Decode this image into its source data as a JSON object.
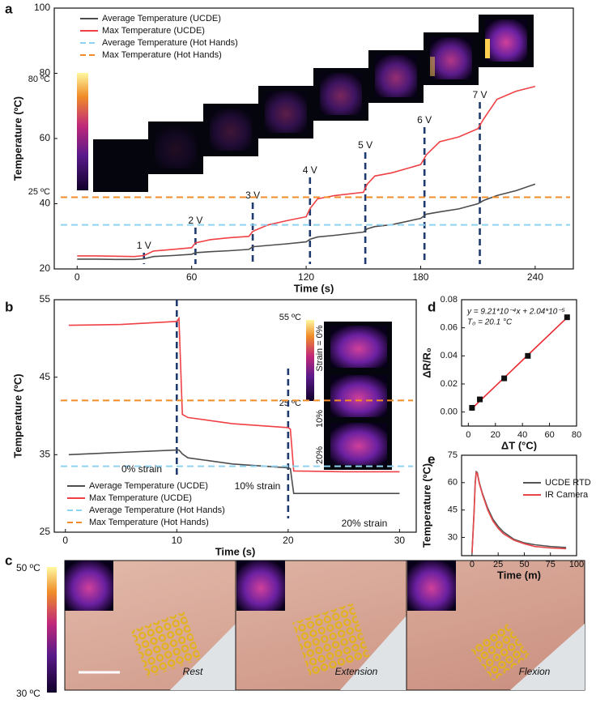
{
  "panel_labels": [
    "a",
    "b",
    "c",
    "d",
    "e"
  ],
  "chart_data": [
    {
      "type": "line",
      "xlabel": "Time (s)",
      "ylabel": "Temperature (ºC)",
      "xlim": [
        -12,
        260
      ],
      "ylim": [
        20,
        100
      ],
      "xticks": [
        0,
        60,
        120,
        180,
        240
      ],
      "yticks": [
        20,
        40,
        60,
        80,
        100
      ],
      "legend": "upper left",
      "x": [
        0,
        10,
        20,
        30,
        35,
        40,
        50,
        60,
        62,
        70,
        80,
        90,
        92,
        100,
        110,
        120,
        122,
        126,
        135,
        150,
        152,
        156,
        165,
        180,
        183,
        190,
        200,
        210,
        213,
        220,
        230,
        240
      ],
      "series": [
        {
          "name": "Average Temperature (UCDE)",
          "color": "#4d4d4d",
          "values": [
            23,
            23,
            22.9,
            22.9,
            23.1,
            23.8,
            24.1,
            24.5,
            25,
            25.3,
            25.6,
            26,
            26.8,
            27.2,
            27.7,
            28.3,
            29.1,
            29.8,
            30.3,
            31.3,
            32.3,
            33,
            33.6,
            35.5,
            36.8,
            37.5,
            38.4,
            40,
            41,
            42.5,
            44,
            46
          ]
        },
        {
          "name": "Max Temperature (UCDE)",
          "color": "#ef4146",
          "values": [
            24,
            24,
            23.9,
            23.8,
            24.1,
            25.5,
            26,
            26.5,
            28,
            29,
            29.6,
            30,
            31.5,
            33.5,
            34.8,
            36,
            38.5,
            41.5,
            42.5,
            43.5,
            46,
            48.5,
            49.5,
            52,
            55,
            59,
            60.5,
            63,
            66,
            72,
            74.5,
            76
          ]
        },
        {
          "name": "Average Temperature (Hot Hands)",
          "color": "#8fd3f0",
          "value": 33.5,
          "dashed": true
        },
        {
          "name": "Max Temperature (Hot Hands)",
          "color": "#f28c28",
          "value": 42,
          "dashed": true
        }
      ],
      "markers": [
        {
          "x": 35,
          "label": "1 V"
        },
        {
          "x": 62,
          "label": "2 V"
        },
        {
          "x": 92,
          "label": "3 V"
        },
        {
          "x": 122,
          "label": "4 V"
        },
        {
          "x": 151,
          "label": "5 V"
        },
        {
          "x": 182,
          "label": "6 V"
        },
        {
          "x": 211,
          "label": "7 V"
        }
      ],
      "colorbar": [
        "80 ºC",
        "25 ºC"
      ]
    },
    {
      "type": "line",
      "xlabel": "Time (s)",
      "ylabel": "Temperature (ºC)",
      "xlim": [
        -1,
        31.5
      ],
      "ylim": [
        25,
        55
      ],
      "xticks": [
        0,
        10,
        20,
        30
      ],
      "yticks": [
        25,
        35,
        45,
        55
      ],
      "legend": "lower left",
      "x": [
        0.3,
        5,
        10,
        10.2,
        10.5,
        11,
        15,
        20,
        20.2,
        20.5,
        25,
        30
      ],
      "series": [
        {
          "name": "Average Temperature (UCDE)",
          "color": "#4d4d4d",
          "values": [
            35,
            35.3,
            35.6,
            35.6,
            35.1,
            34.6,
            33.8,
            33.3,
            33.2,
            30,
            30,
            30
          ]
        },
        {
          "name": "Max Temperature (UCDE)",
          "color": "#ef4146",
          "values": [
            51.7,
            51.8,
            52.2,
            52.6,
            40.2,
            39.8,
            39,
            38.5,
            38.3,
            32.9,
            32.8,
            32.8
          ]
        },
        {
          "name": "Average Temperature (Hot Hands)",
          "color": "#8fd3f0",
          "value": 33.5,
          "dashed": true
        },
        {
          "name": "Max Temperature (Hot Hands)",
          "color": "#f28c28",
          "value": 42,
          "dashed": true
        }
      ],
      "markers": [
        {
          "x": 10
        },
        {
          "x": 20
        }
      ],
      "annotations": [
        "0% strain",
        "10% strain",
        "20% strain"
      ],
      "colorbar": [
        "55 ºC",
        "25 ºC"
      ],
      "inset_labels": [
        "Strain = 0%",
        "10%",
        "20%"
      ]
    },
    {
      "type": "scatter",
      "xlabel": "ΔT (°C)",
      "ylabel": "ΔR/R₀",
      "xlim": [
        -5,
        80
      ],
      "ylim": [
        -0.01,
        0.08
      ],
      "xticks": [
        0,
        20,
        40,
        60,
        80
      ],
      "yticks": [
        {
          "value": 0,
          "label": "0.00"
        },
        0.02,
        0.04,
        0.06,
        0.08
      ],
      "x": [
        2.7,
        8.5,
        26.5,
        44,
        73
      ],
      "values": [
        0.003,
        0.009,
        0.024,
        0.04,
        0.0675
      ],
      "color": "#111111",
      "fit": {
        "slope": 0.000921,
        "intercept": 2.04e-05,
        "color": "#e8282e"
      },
      "annotations": [
        "y = 9.21*10⁻⁴x + 2.04*10⁻⁵",
        "T₀ = 20.1 °C"
      ]
    },
    {
      "type": "line",
      "xlabel": "Time (m)",
      "ylabel": "Temperature (ºC)",
      "xlim": [
        -10,
        100
      ],
      "ylim": [
        20,
        75
      ],
      "xticks": [
        0,
        25,
        50,
        75,
        100
      ],
      "yticks": [
        30,
        45,
        60,
        75
      ],
      "legend": "upper right",
      "x": [
        0,
        2,
        3,
        4,
        5,
        7,
        10,
        15,
        20,
        25,
        30,
        40,
        50,
        60,
        75,
        90
      ],
      "series": [
        {
          "name": "UCDE RTD",
          "color": "#555555",
          "values": [
            21.5,
            45,
            60,
            66,
            65.5,
            60,
            54,
            46,
            40,
            36,
            33,
            29,
            27,
            26,
            25,
            24.5
          ]
        },
        {
          "name": "IR Camera",
          "color": "#e8474a",
          "values": [
            21.5,
            44,
            59,
            65.5,
            65,
            59.5,
            53.5,
            45,
            39,
            35,
            32,
            28.5,
            26.5,
            25,
            24.2,
            23.8
          ]
        }
      ]
    }
  ],
  "panel_c": {
    "colorbar": [
      "50 ºC",
      "30 ºC"
    ],
    "labels": [
      "Rest",
      "Extension",
      "Flexion"
    ]
  }
}
